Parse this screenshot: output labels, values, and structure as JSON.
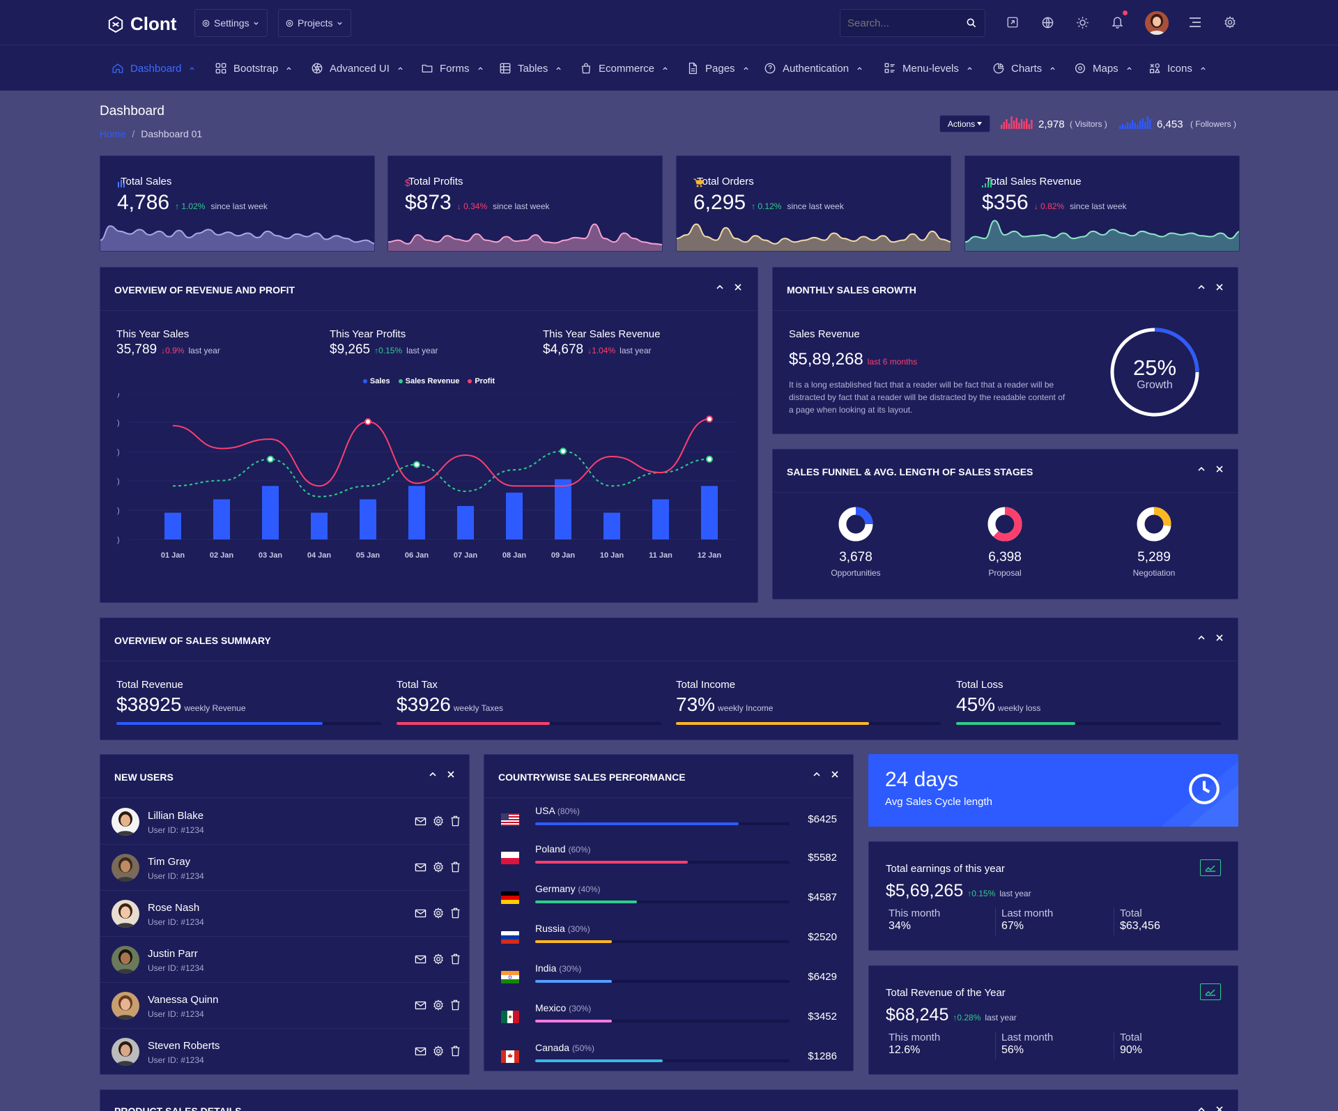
{
  "app": {
    "name": "Clont"
  },
  "topbar": {
    "settings_label": "Settings",
    "projects_label": "Projects",
    "search_placeholder": "Search..."
  },
  "nav": [
    {
      "label": "Dashboard",
      "icon": "home-icon",
      "active": true
    },
    {
      "label": "Bootstrap",
      "icon": "grid-icon"
    },
    {
      "label": "Advanced UI",
      "icon": "aperture-icon"
    },
    {
      "label": "Forms",
      "icon": "folder-icon"
    },
    {
      "label": "Tables",
      "icon": "table-icon"
    },
    {
      "label": "Ecommerce",
      "icon": "shopping-bag-icon"
    },
    {
      "label": "Pages",
      "icon": "file-icon"
    },
    {
      "label": "Authentication",
      "icon": "help-circle-icon"
    },
    {
      "label": "Menu-levels",
      "icon": "list-icon"
    },
    {
      "label": "Charts",
      "icon": "pie-chart-icon"
    },
    {
      "label": "Maps",
      "icon": "target-icon"
    },
    {
      "label": "Icons",
      "icon": "shapes-icon"
    }
  ],
  "page": {
    "title": "Dashboard",
    "breadcrumb_home": "Home",
    "breadcrumb_sep": "/",
    "breadcrumb_current": "Dashboard 01",
    "actions_label": "Actions",
    "visitors_value": "2,978",
    "visitors_label": "( Visitors )",
    "followers_value": "6,453",
    "followers_label": "( Followers )"
  },
  "kpis": [
    {
      "label": "Total Sales",
      "icon": "bar-chart-icon",
      "icon_color": "#4a7bff",
      "value": "4,786",
      "change": "1.02%",
      "dir": "up",
      "since": "since last week",
      "fill": "#5b5b9c",
      "stroke": "#a8a8e6",
      "spark": [
        12,
        28,
        22,
        19,
        24,
        18,
        22,
        16,
        23,
        15,
        20,
        24,
        18,
        21,
        17,
        20,
        15,
        22,
        17,
        14,
        19,
        16,
        20,
        13,
        17,
        14,
        10,
        12,
        8
      ]
    },
    {
      "label": "Total Profits",
      "icon": "dollar-icon",
      "icon_color": "#fb3f6d",
      "value": "$873",
      "change": "0.34%",
      "dir": "down",
      "since": "since last week",
      "fill": "#7b5686",
      "stroke": "#f2a4cf",
      "spark": [
        10,
        12,
        8,
        18,
        12,
        10,
        17,
        13,
        11,
        19,
        12,
        10,
        16,
        11,
        12,
        18,
        10,
        9,
        12,
        15,
        14,
        30,
        14,
        10,
        20,
        14,
        10,
        8,
        7
      ]
    },
    {
      "label": "Total Orders",
      "icon": "cart-icon",
      "icon_color": "#ffb822",
      "value": "6,295",
      "change": "0.12%",
      "dir": "up",
      "since": "since last week",
      "fill": "#7b6f6c",
      "stroke": "#f2dca8",
      "spark": [
        14,
        18,
        30,
        16,
        12,
        26,
        14,
        10,
        17,
        12,
        8,
        14,
        10,
        12,
        15,
        12,
        20,
        14,
        11,
        16,
        12,
        17,
        10,
        12,
        19,
        12,
        22,
        13,
        10
      ]
    },
    {
      "label": "Total Sales Revenue",
      "icon": "signal-icon",
      "icon_color": "#2dce89",
      "value": "$356",
      "change": "0.82%",
      "dir": "down",
      "since": "since last week",
      "fill": "#3f6b82",
      "stroke": "#8ee6c6",
      "spark": [
        10,
        16,
        14,
        34,
        18,
        22,
        16,
        17,
        18,
        15,
        20,
        14,
        16,
        22,
        18,
        24,
        20,
        17,
        22,
        19,
        16,
        20,
        18,
        20,
        17,
        16,
        20,
        14,
        22
      ]
    }
  ],
  "overview": {
    "title": "OVERVIEW OF REVENUE AND PROFIT",
    "stats": [
      {
        "label": "This Year Sales",
        "value": "35,789",
        "change": "0.9%",
        "dir": "down",
        "note": "last year"
      },
      {
        "label": "This Year Profits",
        "value": "$9,265",
        "change": "0.15%",
        "dir": "up",
        "note": "last year"
      },
      {
        "label": "This Year Sales Revenue",
        "value": "$4,678",
        "change": "1.04%",
        "dir": "down",
        "note": "last year"
      }
    ]
  },
  "chart_data": {
    "type": "bar",
    "categories": [
      "01 Jan",
      "02 Jan",
      "03 Jan",
      "04 Jan",
      "05 Jan",
      "06 Jan",
      "07 Jan",
      "08 Jan",
      "09 Jan",
      "10 Jan",
      "11 Jan",
      "12 Jan"
    ],
    "series": [
      {
        "name": "Sales",
        "type": "bar",
        "color": "#2d5bff",
        "values": [
          20,
          30,
          40,
          20,
          30,
          40,
          25,
          35,
          45,
          20,
          30,
          40
        ]
      },
      {
        "name": "Sales Revenue",
        "type": "line",
        "style": "dashed",
        "color": "#2dce89",
        "values": [
          40,
          44,
          60,
          32,
          40,
          56,
          36,
          52,
          66,
          40,
          50,
          60
        ]
      },
      {
        "name": "Profit",
        "type": "line",
        "style": "smooth",
        "color": "#fb3f6d",
        "values": [
          85,
          68,
          75,
          40,
          88,
          42,
          63,
          40,
          40,
          62,
          50,
          90
        ]
      }
    ],
    "ylim": [
      0,
      100
    ],
    "ytick_labels": [
      ")",
      ")",
      ")",
      ")",
      ")",
      ")"
    ],
    "legend": "top-center",
    "grid": true
  },
  "monthly": {
    "title": "MONTHLY SALES GROWTH",
    "label": "Sales Revenue",
    "value": "$5,89,268",
    "note": "last 6 months",
    "text": "It is a long established fact that a reader will be fact that a reader will be distracted by fact that a reader will be distracted by the readable content of a page when looking at its layout.",
    "growth_pct": "25%",
    "growth_label": "Growth",
    "growth_fraction": 0.25
  },
  "funnel": {
    "title": "SALES FUNNEL & AVG. LENGTH OF SALES STAGES",
    "items": [
      {
        "value": "3,678",
        "label": "Opportunities",
        "color": "#2d5bff",
        "fraction": 0.25
      },
      {
        "value": "6,398",
        "label": "Proposal",
        "color": "#fb3f6d",
        "fraction": 0.62
      },
      {
        "value": "5,289",
        "label": "Negotiation",
        "color": "#ffb822",
        "fraction": 0.27
      }
    ]
  },
  "summary": {
    "title": "OVERVIEW OF SALES SUMMARY",
    "items": [
      {
        "label": "Total Revenue",
        "value": "$38925",
        "sub": "weekly Revenue",
        "color": "#2d5bff",
        "fraction": 0.78
      },
      {
        "label": "Total Tax",
        "value": "$3926",
        "sub": "weekly Taxes",
        "color": "#fb3f6d",
        "fraction": 0.58
      },
      {
        "label": "Total Income",
        "value": "73%",
        "sub": "weekly Income",
        "color": "#ffb822",
        "fraction": 0.73
      },
      {
        "label": "Total Loss",
        "value": "45%",
        "sub": "weekly loss",
        "color": "#2dce89",
        "fraction": 0.45
      }
    ]
  },
  "new_users": {
    "title": "NEW USERS",
    "users": [
      {
        "name": "Lillian Blake",
        "id": "User ID: #1234",
        "skin": "#e6b48c",
        "hair": "#2a1a10",
        "bg": "#f4f4f4"
      },
      {
        "name": "Tim Gray",
        "id": "User ID: #1234",
        "skin": "#c08a62",
        "hair": "#3a2a1a",
        "bg": "#7a6a5a"
      },
      {
        "name": "Rose Nash",
        "id": "User ID: #1234",
        "skin": "#f0c8a8",
        "hair": "#3b2416",
        "bg": "#e8ddd0"
      },
      {
        "name": "Justin Parr",
        "id": "User ID: #1234",
        "skin": "#a87450",
        "hair": "#1a140e",
        "bg": "#6a7a5a"
      },
      {
        "name": "Vanessa Quinn",
        "id": "User ID: #1234",
        "skin": "#e4b494",
        "hair": "#6a3a1a",
        "bg": "#c8a070"
      },
      {
        "name": "Steven Roberts",
        "id": "User ID: #1234",
        "skin": "#d8a888",
        "hair": "#2a1a12",
        "bg": "#bcbcbc"
      }
    ]
  },
  "countries": {
    "title": "COUNTRYWISE SALES PERFORMANCE",
    "items": [
      {
        "name": "USA",
        "pct": "(80%)",
        "value": "$6425",
        "fraction": 0.8,
        "color": "#2d5bff",
        "flag": "usa"
      },
      {
        "name": "Poland",
        "pct": "(60%)",
        "value": "$5582",
        "fraction": 0.6,
        "color": "#fb3f6d",
        "flag": "poland"
      },
      {
        "name": "Germany",
        "pct": "(40%)",
        "value": "$4587",
        "fraction": 0.4,
        "color": "#2dce89",
        "flag": "germany"
      },
      {
        "name": "Russia",
        "pct": "(30%)",
        "value": "$2520",
        "fraction": 0.3,
        "color": "#ffb822",
        "flag": "russia"
      },
      {
        "name": "India",
        "pct": "(30%)",
        "value": "$6429",
        "fraction": 0.3,
        "color": "#56a0ff",
        "flag": "india"
      },
      {
        "name": "Mexico",
        "pct": "(30%)",
        "value": "$3452",
        "fraction": 0.3,
        "color": "#f27be0",
        "flag": "mexico"
      },
      {
        "name": "Canada",
        "pct": "(50%)",
        "value": "$1286",
        "fraction": 0.5,
        "color": "#3ab9e6",
        "flag": "canada"
      }
    ]
  },
  "cycle": {
    "value": "24 days",
    "label": "Avg Sales Cycle length"
  },
  "earnings": {
    "title": "Total earnings of this year",
    "value": "$5,69,265",
    "change": "0.15%",
    "note": "last year",
    "cols": [
      {
        "label": "This month",
        "value": "34%"
      },
      {
        "label": "Last month",
        "value": "67%"
      },
      {
        "label": "Total",
        "value": "$63,456"
      }
    ]
  },
  "revenue_year": {
    "title": "Total Revenue of the Year",
    "value": "$68,245",
    "change": "0.28%",
    "note": "last year",
    "cols": [
      {
        "label": "This month",
        "value": "12.6%"
      },
      {
        "label": "Last month",
        "value": "56%"
      },
      {
        "label": "Total",
        "value": "90%"
      }
    ]
  },
  "product_sales": {
    "title": "PRODUCT SALES DETAILS"
  },
  "colors": {
    "background": "#47477c",
    "card": "#1d1d5a",
    "accent": "#2d5bff",
    "success": "#2dce89",
    "danger": "#fb3f6d",
    "warning": "#ffb822"
  }
}
